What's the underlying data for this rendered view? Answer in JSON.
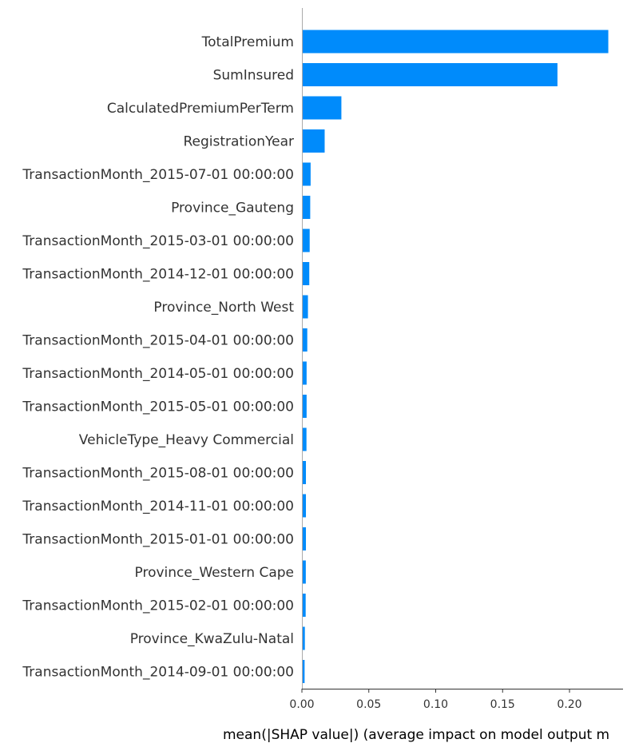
{
  "chart_data": {
    "type": "bar",
    "orientation": "horizontal",
    "categories": [
      "TotalPremium",
      "SumInsured",
      "CalculatedPremiumPerTerm",
      "RegistrationYear",
      "TransactionMonth_2015-07-01 00:00:00",
      "Province_Gauteng",
      "TransactionMonth_2015-03-01 00:00:00",
      "TransactionMonth_2014-12-01 00:00:00",
      "Province_North West",
      "TransactionMonth_2015-04-01 00:00:00",
      "TransactionMonth_2014-05-01 00:00:00",
      "TransactionMonth_2015-05-01 00:00:00",
      "VehicleType_Heavy Commercial",
      "TransactionMonth_2015-08-01 00:00:00",
      "TransactionMonth_2014-11-01 00:00:00",
      "TransactionMonth_2015-01-01 00:00:00",
      "Province_Western Cape",
      "TransactionMonth_2015-02-01 00:00:00",
      "Province_KwaZulu-Natal",
      "TransactionMonth_2014-09-01 00:00:00"
    ],
    "values": [
      0.229,
      0.191,
      0.0295,
      0.017,
      0.0065,
      0.0062,
      0.0058,
      0.0055,
      0.0045,
      0.004,
      0.0035,
      0.0035,
      0.0034,
      0.003,
      0.003,
      0.003,
      0.0029,
      0.0028,
      0.0022,
      0.002
    ],
    "xlabel": "mean(|SHAP value|) (average impact on model output m",
    "ylabel": "",
    "title": "",
    "xlim": [
      0,
      0.24
    ],
    "xticks": [
      0.0,
      0.05,
      0.1,
      0.15,
      0.2
    ],
    "xtick_labels": [
      "0.00",
      "0.05",
      "0.10",
      "0.15",
      "0.20"
    ],
    "grid": false,
    "bar_color": "#008bfb"
  }
}
